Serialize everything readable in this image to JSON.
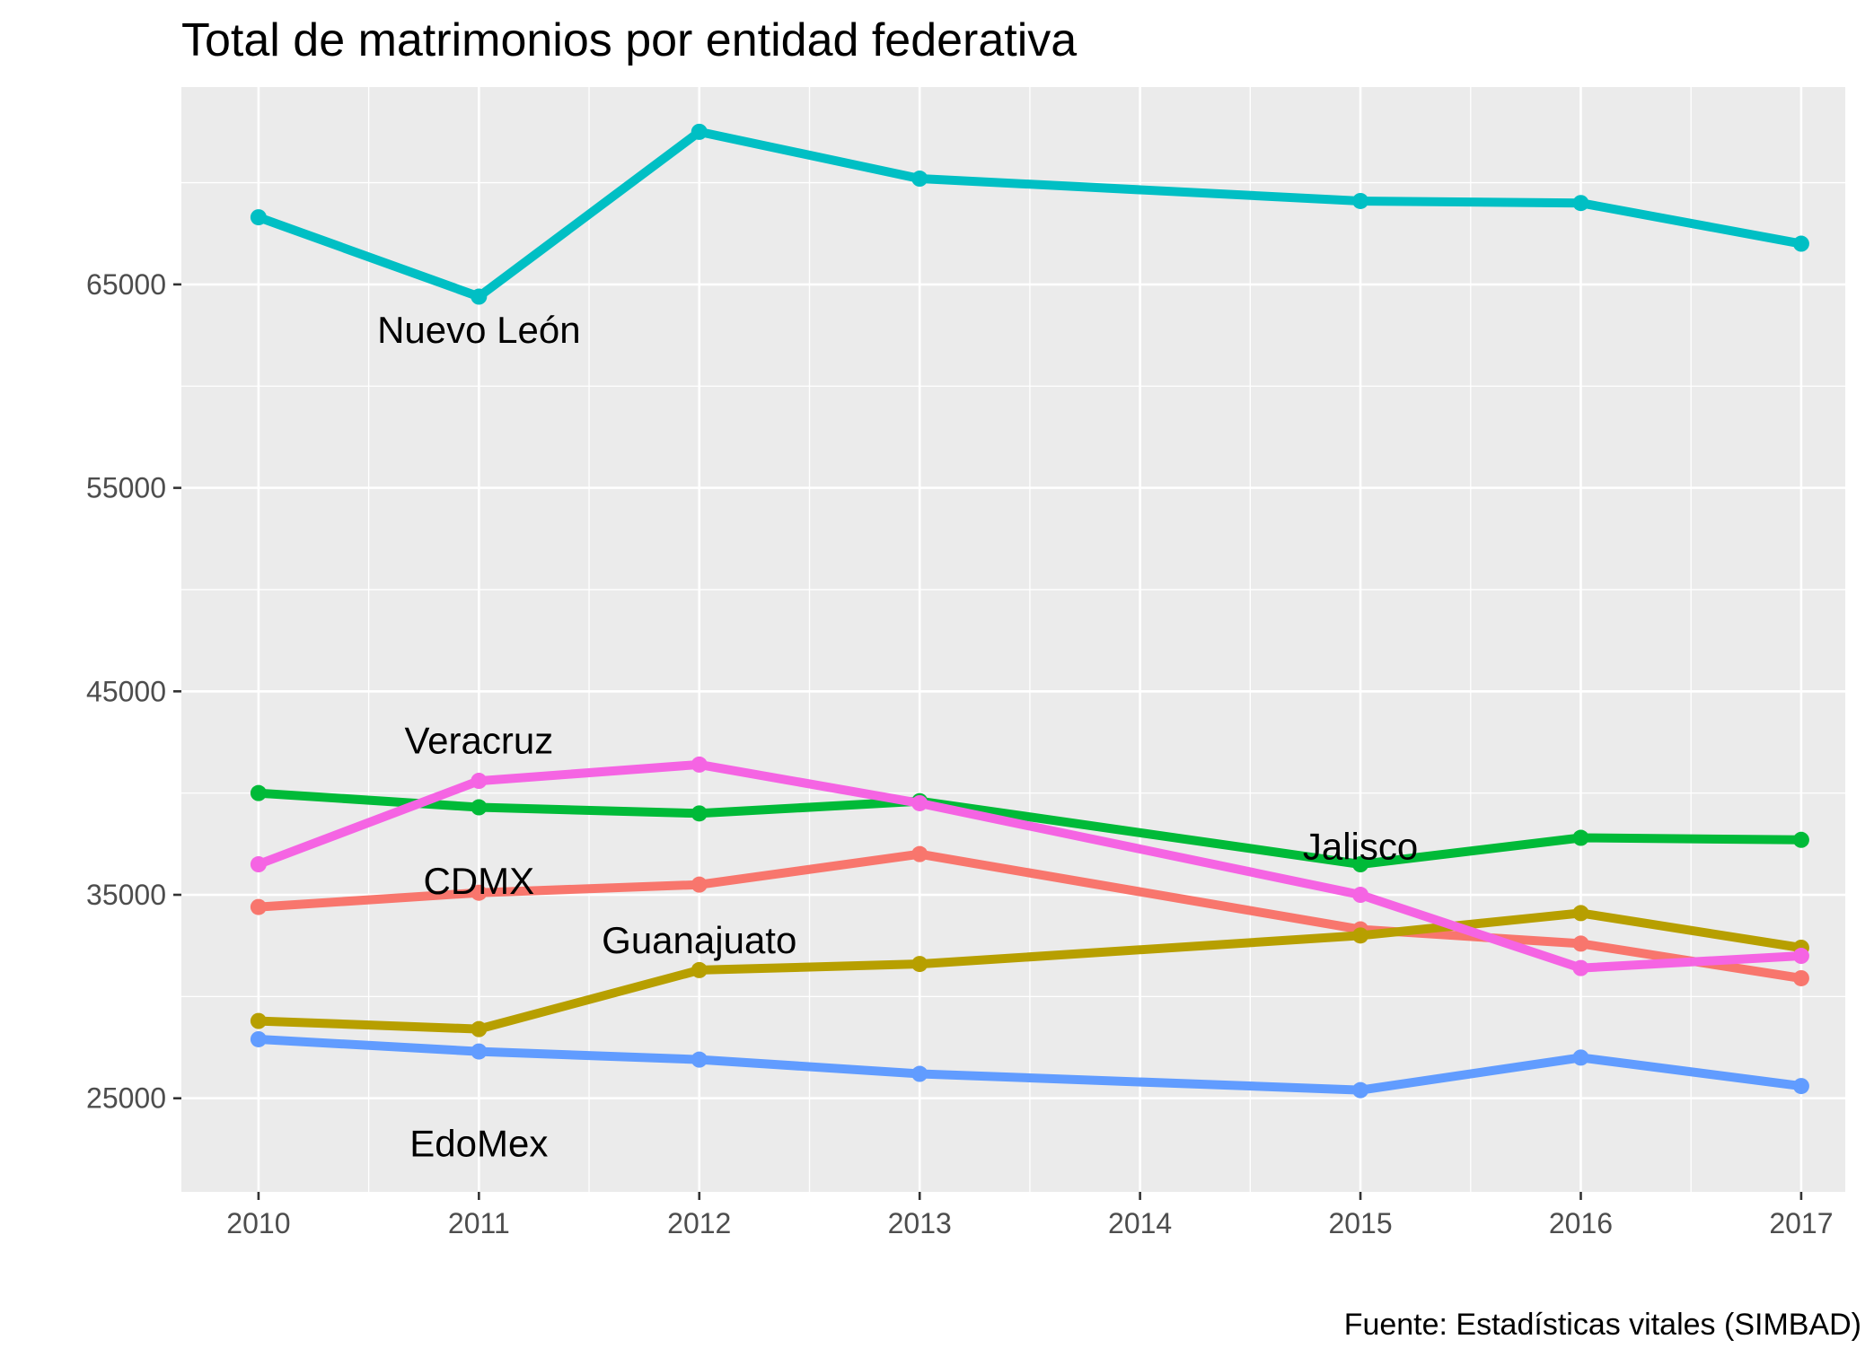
{
  "chart_data": {
    "type": "line",
    "title": "Total de matrimonios por entidad federativa",
    "caption": "Fuente: Estadísticas vitales (SIMBAD)",
    "xlabel": "",
    "ylabel": "",
    "x": [
      2010,
      2011,
      2012,
      2013,
      2015,
      2016,
      2017
    ],
    "x_ticks": [
      "2010",
      "2011",
      "2012",
      "2013",
      "2014",
      "2015",
      "2016",
      "2017"
    ],
    "xlim": [
      2009.65,
      2017.2
    ],
    "y_ticks": [
      "25000",
      "35000",
      "45000",
      "55000",
      "65000"
    ],
    "ylim": [
      20400,
      74700
    ],
    "grid": true,
    "legend": "none",
    "series": [
      {
        "name": "CDMX",
        "color": "#F8766D",
        "values": [
          34400,
          35100,
          35500,
          37000,
          33300,
          32600,
          30900
        ]
      },
      {
        "name": "Guanajuato",
        "color": "#B79F00",
        "values": [
          28800,
          28400,
          31300,
          31600,
          33000,
          34100,
          32400
        ]
      },
      {
        "name": "Jalisco",
        "color": "#00BA38",
        "values": [
          40000,
          39300,
          39000,
          39600,
          36500,
          37800,
          37700
        ]
      },
      {
        "name": "Nuevo León",
        "color": "#00BFC4",
        "values": [
          68300,
          64400,
          72500,
          70200,
          69100,
          69000,
          67000
        ]
      },
      {
        "name": "EdoMex",
        "color": "#619CFF",
        "values": [
          27900,
          27300,
          26900,
          26200,
          25400,
          27000,
          25600
        ]
      },
      {
        "name": "Veracruz",
        "color": "#F564E3",
        "values": [
          36500,
          40600,
          41400,
          39500,
          35000,
          31400,
          32000
        ]
      }
    ],
    "annotations": [
      {
        "text": "Nuevo León",
        "x": 2011,
        "y": 62800
      },
      {
        "text": "Veracruz",
        "x": 2011,
        "y": 42600
      },
      {
        "text": "CDMX",
        "x": 2011,
        "y": 35700
      },
      {
        "text": "Guanajuato",
        "x": 2012,
        "y": 32800
      },
      {
        "text": "Jalisco",
        "x": 2015,
        "y": 37400
      },
      {
        "text": "EdoMex",
        "x": 2011,
        "y": 22800
      }
    ]
  }
}
